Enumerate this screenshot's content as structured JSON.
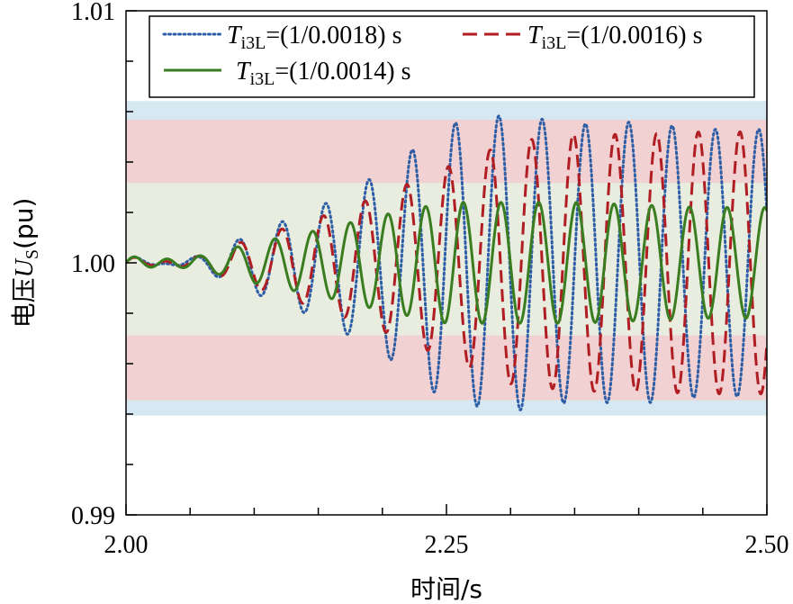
{
  "chart_data": {
    "type": "line",
    "title": "",
    "xlabel": "时间/s",
    "ylabel": {
      "prefix": "电压",
      "var": "U",
      "sub": "S",
      "suffix": "(pu)"
    },
    "xlim": [
      2.0,
      2.5
    ],
    "ylim": [
      0.99,
      1.01
    ],
    "xticks": [
      2.0,
      2.25,
      2.5
    ],
    "xtick_labels": [
      "2.00",
      "2.25",
      "2.50"
    ],
    "xminor_step": 0.05,
    "yticks": [
      0.99,
      1.0,
      1.01
    ],
    "ytick_labels": [
      "0.99",
      "1.00",
      "1.01"
    ],
    "yminor_step": 0.002,
    "bands": [
      {
        "name": "blue-band",
        "lower": 0.99394,
        "upper": 1.00642,
        "color": "#d6e8f1"
      },
      {
        "name": "red-band",
        "lower": 0.99455,
        "upper": 1.00568,
        "color": "#f1d1d1"
      },
      {
        "name": "green-band",
        "lower": 0.99712,
        "upper": 1.00317,
        "color": "#e8ede0"
      }
    ],
    "series": [
      {
        "name": "T_i3L=(1/0.0018) s",
        "legend_var": "T",
        "legend_sub": "i3L",
        "legend_rest": "=(1/0.0018) s",
        "color": "#2e5fa6",
        "style": "dotted",
        "x": [
          2.0,
          2.06,
          2.1,
          2.15,
          2.2,
          2.25,
          2.3,
          2.35,
          2.4,
          2.45,
          2.5
        ],
        "amplitude": [
          0.0,
          0.0003,
          0.0012,
          0.0022,
          0.0036,
          0.0055,
          0.0059,
          0.0055,
          0.0056,
          0.0053,
          0.0053
        ],
        "period": 0.0338,
        "phase": 0.25
      },
      {
        "name": "T_i3L=(1/0.0016) s",
        "legend_var": "T",
        "legend_sub": "i3L",
        "legend_rest": "=(1/0.0016) s",
        "color": "#b01e23",
        "style": "dashed",
        "x": [
          2.0,
          2.06,
          2.1,
          2.15,
          2.2,
          2.25,
          2.3,
          2.35,
          2.4,
          2.45,
          2.5
        ],
        "amplitude": [
          0.0,
          0.0003,
          0.001,
          0.0018,
          0.0027,
          0.0038,
          0.0048,
          0.0051,
          0.0051,
          0.0052,
          0.0052
        ],
        "period": 0.0325,
        "phase": 0.1
      },
      {
        "name": "T_i3L=(1/0.0014) s",
        "legend_var": "T",
        "legend_sub": "i3L",
        "legend_rest": "=(1/0.0014) s",
        "color": "#3a7d20",
        "style": "solid",
        "x": [
          2.0,
          2.06,
          2.1,
          2.15,
          2.2,
          2.25,
          2.3,
          2.35,
          2.4,
          2.45,
          2.5
        ],
        "amplitude": [
          0.0,
          0.0003,
          0.0008,
          0.0013,
          0.0019,
          0.0024,
          0.0024,
          0.0024,
          0.0023,
          0.0022,
          0.0022
        ],
        "period": 0.0294,
        "phase": 0.0
      }
    ],
    "legend_position": "top"
  }
}
